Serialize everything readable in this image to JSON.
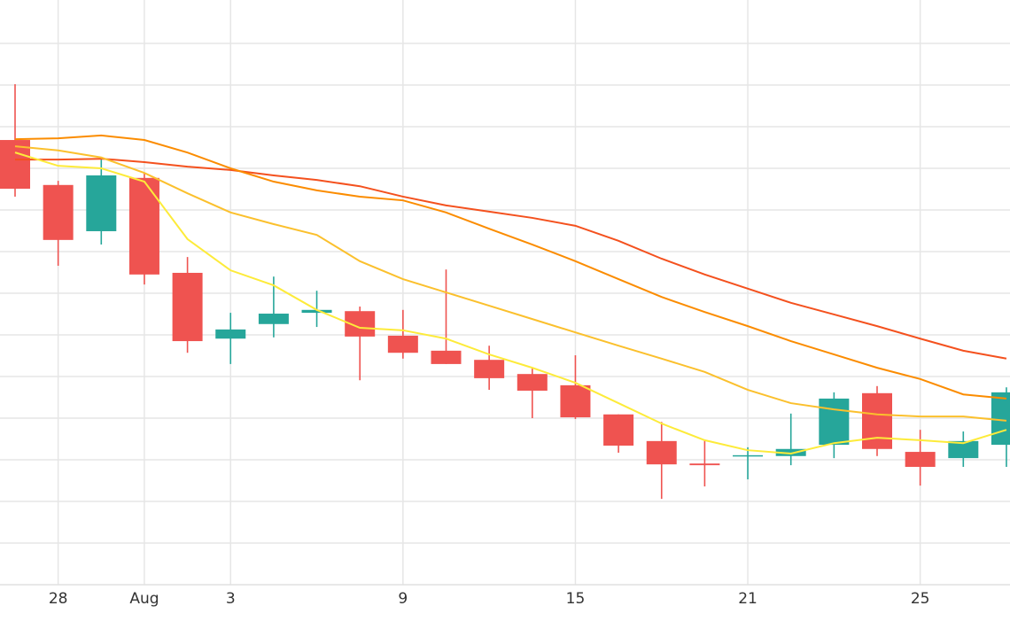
{
  "chart_data": {
    "type": "candlestick",
    "categories": [
      null,
      "28",
      null,
      "Aug",
      null,
      "3",
      null,
      null,
      null,
      "9",
      null,
      null,
      null,
      "15",
      null,
      null,
      null,
      "21",
      null,
      null,
      null,
      "25",
      null,
      null
    ],
    "open": [
      10.68,
      9.6,
      8.49,
      9.77,
      7.49,
      5.91,
      6.26,
      6.53,
      6.57,
      5.98,
      5.62,
      5.4,
      5.06,
      4.79,
      4.09,
      3.45,
      2.91,
      3.09,
      3.09,
      3.36,
      4.6,
      3.19,
      3.04,
      3.36
    ],
    "high": [
      12.02,
      9.7,
      10.21,
      9.89,
      7.87,
      6.53,
      7.4,
      7.06,
      6.68,
      6.6,
      7.57,
      5.74,
      5.19,
      5.51,
      4.09,
      3.91,
      3.49,
      3.3,
      4.11,
      4.62,
      4.77,
      3.72,
      3.68,
      4.74
    ],
    "low": [
      9.32,
      7.66,
      8.17,
      7.21,
      5.57,
      5.3,
      5.94,
      6.19,
      4.91,
      5.43,
      5.3,
      4.68,
      4.0,
      3.98,
      3.17,
      2.06,
      2.36,
      2.53,
      2.87,
      3.04,
      3.09,
      2.38,
      2.83,
      2.83
    ],
    "close": [
      9.51,
      8.28,
      9.83,
      7.45,
      5.85,
      6.13,
      6.51,
      6.6,
      5.96,
      5.57,
      5.3,
      4.96,
      4.66,
      4.02,
      3.34,
      2.89,
      2.87,
      3.11,
      3.26,
      4.47,
      3.26,
      2.83,
      3.45,
      4.62
    ],
    "up_color": "#26a69a",
    "down_color": "#ef5350",
    "series": [
      {
        "color": "#f4511e",
        "values": [
          10.21,
          10.21,
          10.23,
          10.15,
          10.04,
          9.96,
          9.83,
          9.72,
          9.57,
          9.32,
          9.11,
          8.96,
          8.81,
          8.62,
          8.26,
          7.83,
          7.45,
          7.11,
          6.77,
          6.49,
          6.21,
          5.91,
          5.62,
          5.43
        ]
      },
      {
        "color": "#fb8c00",
        "values": [
          10.7,
          10.72,
          10.79,
          10.68,
          10.38,
          10.0,
          9.68,
          9.47,
          9.32,
          9.23,
          8.94,
          8.55,
          8.17,
          7.77,
          7.34,
          6.91,
          6.55,
          6.21,
          5.85,
          5.53,
          5.21,
          4.94,
          4.57,
          4.47
        ]
      },
      {
        "color": "#fbc02d",
        "values": [
          10.53,
          10.43,
          10.26,
          9.89,
          9.4,
          8.94,
          8.66,
          8.4,
          7.77,
          7.34,
          7.02,
          6.7,
          6.38,
          6.06,
          5.74,
          5.43,
          5.11,
          4.68,
          4.36,
          4.21,
          4.09,
          4.04,
          4.04,
          3.94
        ]
      },
      {
        "color": "#fdeb3a",
        "values": [
          10.38,
          10.06,
          10.0,
          9.68,
          8.3,
          7.55,
          7.19,
          6.6,
          6.17,
          6.11,
          5.91,
          5.53,
          5.21,
          4.85,
          4.36,
          3.87,
          3.47,
          3.23,
          3.15,
          3.4,
          3.53,
          3.47,
          3.4,
          3.72
        ]
      }
    ],
    "ylim": [
      0,
      14
    ],
    "yticks": [
      1,
      2,
      3,
      4,
      5,
      6,
      7,
      8,
      9,
      10,
      11,
      12,
      13
    ],
    "grid": true
  }
}
